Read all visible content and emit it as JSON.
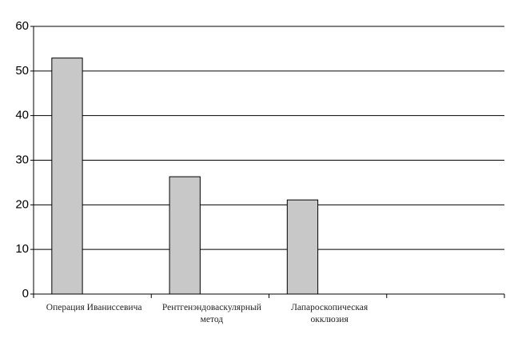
{
  "chart_data": {
    "type": "bar",
    "categories": [
      "Операция Иванисcевича",
      "Рентгенэндоваскулярный метод",
      "Лапароскопическая окклюзия",
      null
    ],
    "values": [
      52.9,
      26.3,
      21.1,
      null
    ],
    "color": "#c8c8c8",
    "ylim": [
      0,
      60
    ],
    "yticks": [
      0,
      10,
      20,
      30,
      40,
      50,
      60
    ],
    "grid": true
  }
}
